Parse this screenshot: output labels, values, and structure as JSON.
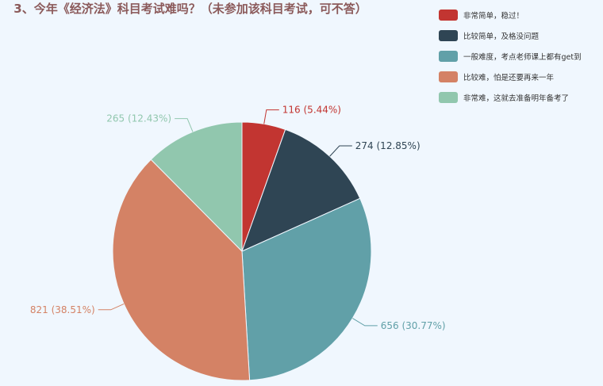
{
  "chart_data": {
    "type": "pie",
    "title": "3、今年《经济法》科目考试难吗？（未参加该科目考试，可不答）",
    "legend_position": "top-right",
    "series": [
      {
        "name": "非常简单，稳过！",
        "value": 116,
        "percent": 5.44,
        "label": "116 (5.44%)",
        "color": "#c23531"
      },
      {
        "name": "比较简单，及格没问题",
        "value": 274,
        "percent": 12.85,
        "label": "274 (12.85%)",
        "color": "#2f4554"
      },
      {
        "name": "一般难度，考点老师课上都有get到",
        "value": 656,
        "percent": 30.77,
        "label": "656 (30.77%)",
        "color": "#61a0a8"
      },
      {
        "name": "比较难，怕是还要再来一年",
        "value": 821,
        "percent": 38.51,
        "label": "821 (38.51%)",
        "color": "#d48265"
      },
      {
        "name": "非常难，这就去准备明年备考了",
        "value": 265,
        "percent": 12.43,
        "label": "265 (12.43%)",
        "color": "#91c7ae"
      }
    ]
  }
}
